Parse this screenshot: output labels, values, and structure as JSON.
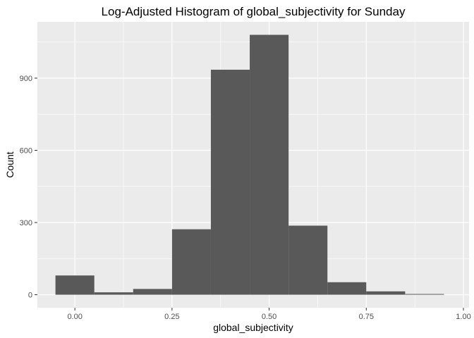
{
  "chart_data": {
    "type": "bar",
    "title": "Log-Adjusted Histogram of global_subjectivity for Sunday",
    "xlabel": "global_subjectivity",
    "ylabel": "Count",
    "xlim": [
      -0.0965,
      1.0145
    ],
    "ylim": [
      -54,
      1134
    ],
    "x_ticks": [
      "0.00",
      "0.25",
      "0.50",
      "0.75",
      "1.00"
    ],
    "y_ticks": [
      "0",
      "300",
      "600",
      "900"
    ],
    "x_tick_values": [
      0,
      0.25,
      0.5,
      0.75,
      1.0
    ],
    "y_tick_values": [
      0,
      300,
      600,
      900
    ],
    "x_minor_values": [
      0.125,
      0.375,
      0.625,
      0.875
    ],
    "y_minor_values": [
      150,
      450,
      750,
      1050
    ],
    "bins": [
      {
        "x0": -0.05,
        "x1": 0.05,
        "count": 80
      },
      {
        "x0": 0.05,
        "x1": 0.15,
        "count": 10
      },
      {
        "x0": 0.15,
        "x1": 0.25,
        "count": 24
      },
      {
        "x0": 0.25,
        "x1": 0.35,
        "count": 272
      },
      {
        "x0": 0.35,
        "x1": 0.45,
        "count": 935
      },
      {
        "x0": 0.45,
        "x1": 0.55,
        "count": 1080
      },
      {
        "x0": 0.55,
        "x1": 0.65,
        "count": 287
      },
      {
        "x0": 0.65,
        "x1": 0.75,
        "count": 52
      },
      {
        "x0": 0.75,
        "x1": 0.85,
        "count": 14
      },
      {
        "x0": 0.85,
        "x1": 0.95,
        "count": 3
      }
    ],
    "grid": true,
    "legend": "none",
    "bar_color": "#595959",
    "panel_color": "#ebebeb",
    "grid_color": "#ffffff"
  }
}
